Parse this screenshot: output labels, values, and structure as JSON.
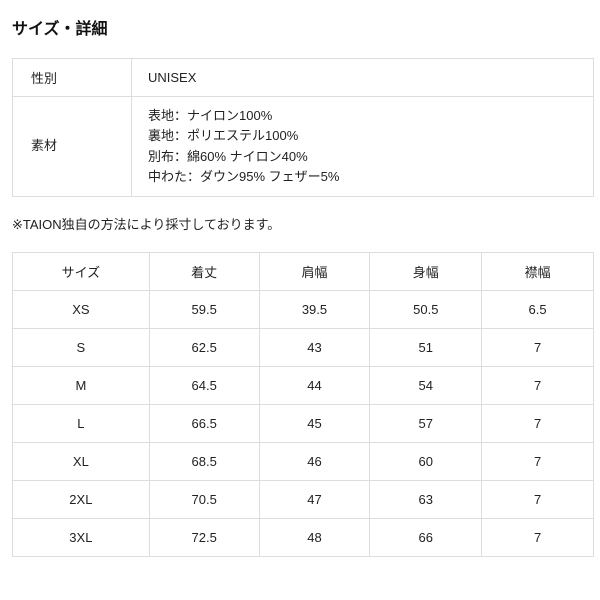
{
  "title": "サイズ・詳細",
  "details": [
    {
      "label": "性別",
      "lines": [
        "UNISEX"
      ]
    },
    {
      "label": "素材",
      "lines": [
        "表地：ナイロン100%",
        "裏地：ポリエステル100%",
        "別布：綿60% ナイロン40%",
        "中わた：ダウン95% フェザー5%"
      ]
    }
  ],
  "note": "※TAION独自の方法により採寸しております。",
  "size_table": {
    "headers": [
      "サイズ",
      "着丈",
      "肩幅",
      "身幅",
      "襟幅"
    ],
    "rows": [
      [
        "XS",
        "59.5",
        "39.5",
        "50.5",
        "6.5"
      ],
      [
        "S",
        "62.5",
        "43",
        "51",
        "7"
      ],
      [
        "M",
        "64.5",
        "44",
        "54",
        "7"
      ],
      [
        "L",
        "66.5",
        "45",
        "57",
        "7"
      ],
      [
        "XL",
        "68.5",
        "46",
        "60",
        "7"
      ],
      [
        "2XL",
        "70.5",
        "47",
        "63",
        "7"
      ],
      [
        "3XL",
        "72.5",
        "48",
        "66",
        "7"
      ]
    ]
  }
}
